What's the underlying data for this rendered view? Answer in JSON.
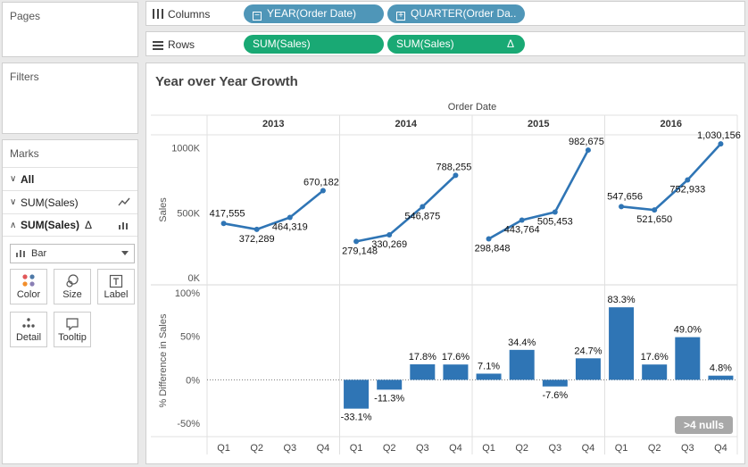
{
  "pages": {
    "title": "Pages"
  },
  "filters": {
    "title": "Filters"
  },
  "marks": {
    "title": "Marks",
    "rows": [
      {
        "label": "All",
        "icon": "none"
      },
      {
        "label": "SUM(Sales)",
        "icon": "line-mark-icon"
      },
      {
        "label": "SUM(Sales)",
        "icon": "bar-mark-icon",
        "delta": "Δ"
      }
    ],
    "mark_type": "Bar",
    "cards": [
      "Color",
      "Size",
      "Label",
      "Detail",
      "Tooltip"
    ]
  },
  "columns_shelf": {
    "label": "Columns",
    "pills": [
      "YEAR(Order Date)",
      "QUARTER(Order Da.."
    ]
  },
  "rows_shelf": {
    "label": "Rows",
    "pills": [
      "SUM(Sales)",
      "SUM(Sales)"
    ],
    "delta": "Δ"
  },
  "viz": {
    "title": "Year over Year Growth",
    "column_header": "Order Date",
    "nulls_badge": ">4 nulls"
  },
  "chart_data": [
    {
      "type": "line",
      "title": "",
      "xlabel": "",
      "ylabel": "Sales",
      "panels": [
        "2013",
        "2014",
        "2015",
        "2016"
      ],
      "categories": [
        "Q1",
        "Q2",
        "Q3",
        "Q4"
      ],
      "yticks": [
        "0K",
        "500K",
        "1000K"
      ],
      "ylim": [
        0,
        1100000
      ],
      "color": "#2f75b5",
      "values": [
        [
          417555,
          372289,
          464319,
          670182
        ],
        [
          279148,
          330269,
          546875,
          788255
        ],
        [
          298848,
          443764,
          505453,
          982675
        ],
        [
          547656,
          521650,
          752933,
          1030156
        ]
      ],
      "labels": [
        [
          "417,555",
          "372,289",
          "464,319",
          "670,182"
        ],
        [
          "279,148",
          "330,269",
          "546,875",
          "788,255"
        ],
        [
          "298,848",
          "443,764",
          "505,453",
          "982,675"
        ],
        [
          "547,656",
          "521,650",
          "752,933",
          "1,030,156"
        ]
      ]
    },
    {
      "type": "bar",
      "title": "",
      "xlabel": "",
      "ylabel": "% Difference in Sales",
      "panels": [
        "2013",
        "2014",
        "2015",
        "2016"
      ],
      "categories": [
        "Q1",
        "Q2",
        "Q3",
        "Q4"
      ],
      "yticks": [
        "-50%",
        "0%",
        "50%",
        "100%"
      ],
      "ylim": [
        -55,
        105
      ],
      "color": "#2f75b5",
      "values": [
        [
          null,
          null,
          null,
          null
        ],
        [
          -33.1,
          -11.3,
          17.8,
          17.6
        ],
        [
          7.1,
          34.4,
          -7.6,
          24.7
        ],
        [
          83.3,
          17.6,
          49.0,
          4.8
        ]
      ],
      "labels": [
        [
          "",
          "",
          "",
          ""
        ],
        [
          "-33.1%",
          "-11.3%",
          "17.8%",
          "17.6%"
        ],
        [
          "7.1%",
          "34.4%",
          "-7.6%",
          "24.7%"
        ],
        [
          "83.3%",
          "17.6%",
          "49.0%",
          "4.8%"
        ]
      ]
    }
  ]
}
